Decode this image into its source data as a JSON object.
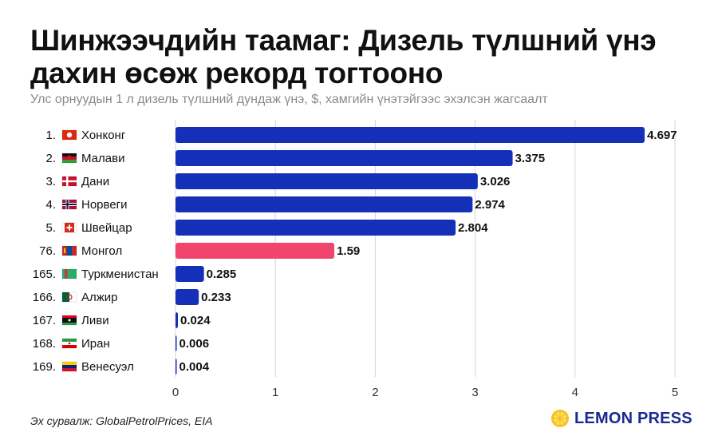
{
  "header": {
    "title": "Шинжээчдийн таамаг: Дизель түлшний үнэ дахин өсөж рекорд тогтооно",
    "subtitle": "Улс орнуудын 1 л дизель түлшний дундаж үнэ, $, хамгийн үнэтэйгээс эхэлсэн жагсаалт"
  },
  "footer": {
    "source": "Эх сурвалж: GlobalPetrolPrices, EIA",
    "logo_text": "LEMON PRESS"
  },
  "colors": {
    "bar": "#1530b8",
    "highlight": "#f2456e",
    "grid": "#d6d6d6",
    "text": "#111111"
  },
  "chart_data": {
    "type": "bar",
    "orientation": "horizontal",
    "ranks": [
      "1.",
      "2.",
      "3.",
      "4.",
      "5.",
      "76.",
      "165.",
      "166.",
      "167.",
      "168.",
      "169."
    ],
    "categories": [
      "Хонконг",
      "Малави",
      "Дани",
      "Норвеги",
      "Швейцар",
      "Монгол",
      "Туркменистан",
      "Алжир",
      "Ливи",
      "Иран",
      "Венесуэл"
    ],
    "flags": [
      "hong-kong-flag-icon",
      "malawi-flag-icon",
      "denmark-flag-icon",
      "norway-flag-icon",
      "switzerland-flag-icon",
      "mongolia-flag-icon",
      "turkmenistan-flag-icon",
      "algeria-flag-icon",
      "libya-flag-icon",
      "iran-flag-icon",
      "venezuela-flag-icon"
    ],
    "values": [
      4.697,
      3.375,
      3.026,
      2.974,
      2.804,
      1.59,
      0.285,
      0.233,
      0.024,
      0.006,
      0.004
    ],
    "value_labels": [
      "4.697",
      "3.375",
      "3.026",
      "2.974",
      "2.804",
      "1.59",
      "0.285",
      "0.233",
      "0.024",
      "0.006",
      "0.004"
    ],
    "highlight": "Монгол",
    "xlim": [
      0,
      5
    ],
    "xticks": [
      0,
      1,
      2,
      3,
      4,
      5
    ],
    "grid": true
  }
}
